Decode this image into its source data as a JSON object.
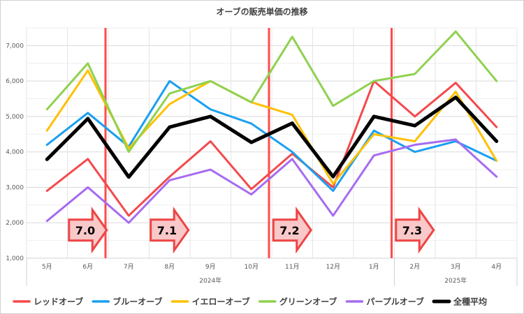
{
  "chart_data": {
    "type": "line",
    "title": "オーブの販売単価の推移",
    "categories": [
      "5月",
      "6月",
      "7月",
      "8月",
      "9月",
      "10月",
      "11月",
      "12月",
      "1月",
      "2月",
      "3月",
      "4月"
    ],
    "category_groups": [
      {
        "label": "2024年",
        "from": 0,
        "to": 8
      },
      {
        "label": "2025年",
        "from": 9,
        "to": 11
      }
    ],
    "ylim": [
      1000,
      7500
    ],
    "y_ticks": [
      1000,
      2000,
      3000,
      4000,
      5000,
      6000,
      7000
    ],
    "y_tick_labels": [
      "1,000",
      "2,000",
      "3,000",
      "4,000",
      "5,000",
      "6,000",
      "7,000"
    ],
    "grid": true,
    "legend_position": "bottom",
    "series": [
      {
        "name": "レッドオーブ",
        "color": "#f4494c",
        "values": [
          2900,
          3800,
          2200,
          3300,
          4300,
          2950,
          3950,
          3000,
          6000,
          5000,
          5950,
          4700
        ]
      },
      {
        "name": "ブルーオーブ",
        "color": "#1a9ff0",
        "values": [
          4200,
          5100,
          4150,
          6000,
          5200,
          4800,
          4000,
          2900,
          4600,
          4000,
          4300,
          3750
        ]
      },
      {
        "name": "イエローオーブ",
        "color": "#ffc000",
        "values": [
          4600,
          6300,
          4100,
          5350,
          6000,
          5400,
          5050,
          3100,
          4500,
          4300,
          5700,
          3750
        ]
      },
      {
        "name": "グリーンオーブ",
        "color": "#8fd14f",
        "values": [
          5200,
          6500,
          4000,
          5650,
          6000,
          5400,
          7250,
          5300,
          6000,
          6200,
          7400,
          6000
        ]
      },
      {
        "name": "パープルオーブ",
        "color": "#a66bf0",
        "values": [
          2050,
          3000,
          2000,
          3200,
          3500,
          2800,
          3800,
          2200,
          3900,
          4200,
          4350,
          3300
        ]
      },
      {
        "name": "全種平均",
        "color": "#000000",
        "values": [
          3790,
          4940,
          3290,
          4700,
          5000,
          4270,
          4810,
          3300,
          5000,
          4740,
          5540,
          4300
        ]
      }
    ],
    "annotations": {
      "version_lines": [
        {
          "after_category": 1,
          "color": "#ff4b4b"
        },
        {
          "after_category": 5,
          "color": "#ff4b4b"
        },
        {
          "after_category": 8,
          "color": "#ff4b4b"
        }
      ],
      "version_arrows": [
        {
          "label": "7.0",
          "center_category": 1
        },
        {
          "label": "7.1",
          "center_category": 3
        },
        {
          "label": "7.2",
          "center_category": 6
        },
        {
          "label": "7.3",
          "center_category": 9
        }
      ]
    }
  }
}
